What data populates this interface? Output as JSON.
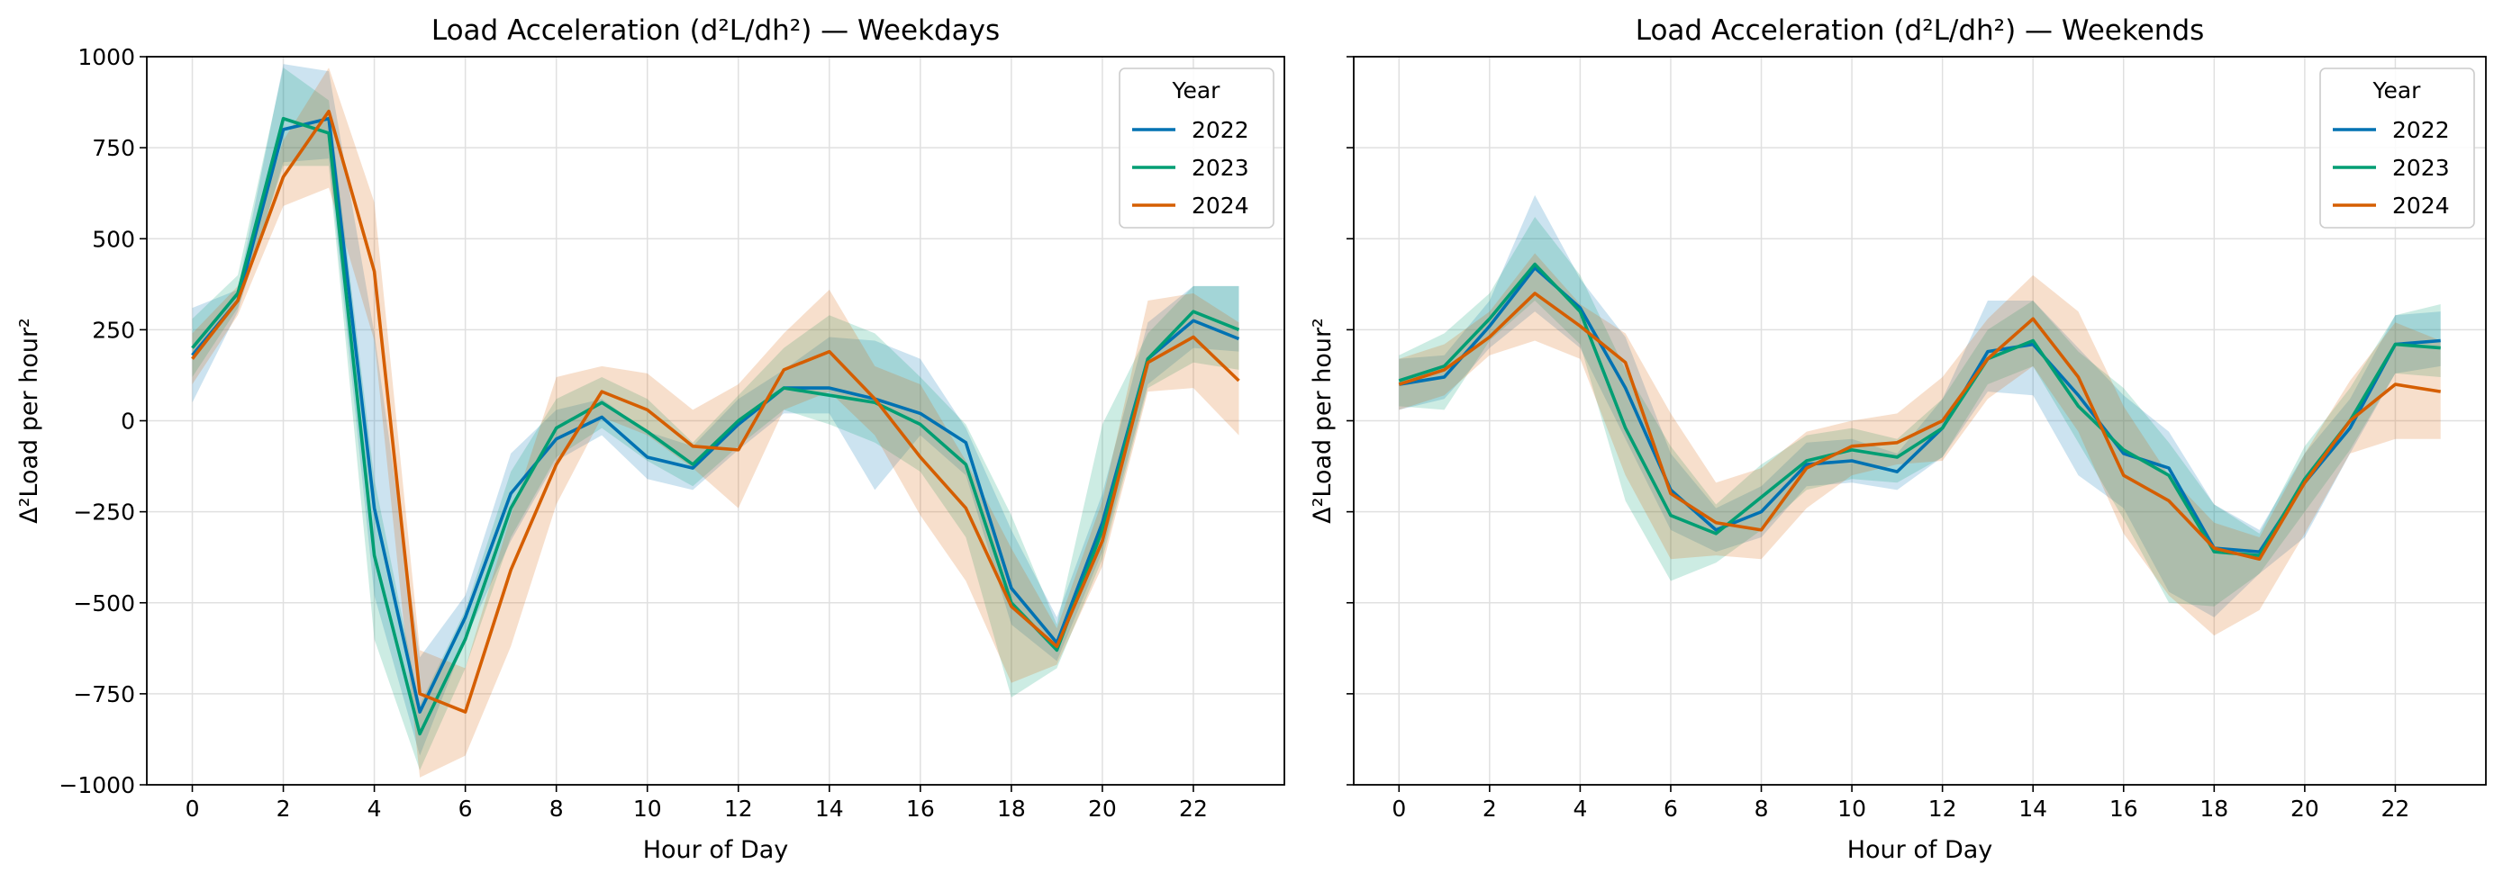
{
  "chart_data": [
    {
      "type": "line",
      "title": "Load Acceleration (d²L/dh²) — Weekdays",
      "xlabel": "Hour of Day",
      "ylabel": "Δ²Load per hour²",
      "xlim": [
        -1,
        24
      ],
      "ylim": [
        -1000,
        1000
      ],
      "x_ticks": [
        0,
        2,
        4,
        6,
        8,
        10,
        12,
        14,
        16,
        18,
        20,
        22
      ],
      "x_tick_labels": [
        "0",
        "2",
        "4",
        "6",
        "8",
        "10",
        "12",
        "14",
        "16",
        "18",
        "20",
        "22"
      ],
      "y_ticks": [
        -1000,
        -750,
        -500,
        -250,
        0,
        250,
        500,
        750,
        1000
      ],
      "y_tick_labels": [
        "−1000",
        "−750",
        "−500",
        "−250",
        "0",
        "250",
        "500",
        "750",
        "1000"
      ],
      "grid": true,
      "legend": {
        "title": "Year",
        "position": "top-right"
      },
      "x": [
        0,
        1,
        2,
        3,
        4,
        5,
        6,
        7,
        8,
        9,
        10,
        11,
        12,
        13,
        14,
        15,
        16,
        17,
        18,
        19,
        20,
        21,
        22,
        23
      ],
      "series": [
        {
          "name": "2022",
          "color": "#0072b2",
          "values": [
            180,
            330,
            800,
            830,
            -240,
            -800,
            -540,
            -200,
            -50,
            10,
            -100,
            -130,
            -10,
            90,
            90,
            60,
            20,
            -60,
            -460,
            -610,
            -280,
            170,
            275,
            225
          ],
          "band_low": [
            50,
            300,
            710,
            720,
            -480,
            -920,
            -600,
            -330,
            -110,
            -40,
            -160,
            -190,
            -80,
            20,
            20,
            -190,
            -40,
            -150,
            -560,
            -660,
            -360,
            100,
            200,
            190
          ],
          "band_high": [
            310,
            360,
            980,
            960,
            240,
            -650,
            -480,
            -90,
            30,
            60,
            -30,
            -70,
            60,
            140,
            230,
            220,
            170,
            -20,
            -300,
            -540,
            -200,
            270,
            370,
            370
          ]
        },
        {
          "name": "2023",
          "color": "#009e73",
          "values": [
            200,
            350,
            830,
            790,
            -370,
            -860,
            -600,
            -240,
            -20,
            50,
            -30,
            -120,
            0,
            90,
            70,
            50,
            -10,
            -120,
            -500,
            -630,
            -300,
            170,
            300,
            250
          ],
          "band_low": [
            120,
            310,
            700,
            700,
            -600,
            -960,
            -680,
            -320,
            -100,
            -20,
            -110,
            -180,
            -70,
            30,
            -10,
            -60,
            -140,
            -320,
            -760,
            -680,
            -380,
            90,
            160,
            140
          ],
          "band_high": [
            280,
            400,
            970,
            880,
            -160,
            -780,
            -520,
            -140,
            60,
            120,
            60,
            -60,
            70,
            200,
            290,
            240,
            120,
            -10,
            -260,
            -560,
            -10,
            240,
            370,
            370
          ]
        },
        {
          "name": "2024",
          "color": "#d55e00",
          "values": [
            170,
            330,
            670,
            850,
            410,
            -750,
            -800,
            -410,
            -120,
            80,
            30,
            -70,
            -80,
            140,
            190,
            60,
            -100,
            -240,
            -510,
            -620,
            -330,
            160,
            230,
            110
          ],
          "band_low": [
            100,
            290,
            590,
            640,
            220,
            -980,
            -920,
            -620,
            -230,
            10,
            -40,
            -130,
            -240,
            30,
            80,
            -40,
            -260,
            -440,
            -720,
            -670,
            -400,
            80,
            90,
            -40
          ],
          "band_high": [
            240,
            370,
            770,
            970,
            600,
            -630,
            -680,
            -260,
            120,
            150,
            130,
            30,
            100,
            240,
            360,
            150,
            100,
            -110,
            -350,
            -570,
            -220,
            330,
            350,
            270
          ]
        }
      ]
    },
    {
      "type": "line",
      "title": "Load Acceleration (d²L/dh²) — Weekends",
      "xlabel": "Hour of Day",
      "ylabel": "Δ²Load per hour²",
      "xlim": [
        -1,
        24
      ],
      "ylim": [
        -1000,
        1000
      ],
      "x_ticks": [
        0,
        2,
        4,
        6,
        8,
        10,
        12,
        14,
        16,
        18,
        20,
        22
      ],
      "x_tick_labels": [
        "0",
        "2",
        "4",
        "6",
        "8",
        "10",
        "12",
        "14",
        "16",
        "18",
        "20",
        "22"
      ],
      "grid": true,
      "legend": {
        "title": "Year",
        "position": "top-right"
      },
      "x": [
        0,
        1,
        2,
        3,
        4,
        5,
        6,
        7,
        8,
        9,
        10,
        11,
        12,
        13,
        14,
        15,
        16,
        17,
        18,
        19,
        20,
        21,
        22,
        23
      ],
      "series": [
        {
          "name": "2022",
          "color": "#0072b2",
          "values": [
            100,
            120,
            260,
            420,
            310,
            90,
            -190,
            -300,
            -250,
            -120,
            -110,
            -140,
            -20,
            190,
            210,
            70,
            -90,
            -130,
            -350,
            -360,
            -170,
            -20,
            210,
            220
          ],
          "band_low": [
            30,
            60,
            200,
            300,
            200,
            -50,
            -300,
            -360,
            -320,
            -180,
            -170,
            -190,
            -100,
            80,
            70,
            -150,
            -240,
            -470,
            -540,
            -420,
            -320,
            -90,
            130,
            150
          ],
          "band_high": [
            170,
            180,
            330,
            620,
            390,
            230,
            -90,
            -240,
            -180,
            -60,
            -50,
            -90,
            60,
            330,
            330,
            200,
            70,
            -30,
            -230,
            -300,
            -90,
            60,
            290,
            300
          ]
        },
        {
          "name": "2023",
          "color": "#009e73",
          "values": [
            110,
            150,
            280,
            430,
            300,
            -20,
            -260,
            -310,
            -210,
            -110,
            -80,
            -100,
            -20,
            170,
            220,
            40,
            -80,
            -150,
            -360,
            -370,
            -160,
            0,
            210,
            200
          ],
          "band_low": [
            40,
            30,
            220,
            330,
            210,
            -220,
            -440,
            -390,
            -300,
            -190,
            -160,
            -170,
            -100,
            100,
            150,
            -60,
            -270,
            -500,
            -510,
            -420,
            -250,
            -80,
            130,
            120
          ],
          "band_high": [
            180,
            240,
            350,
            560,
            400,
            140,
            -70,
            -230,
            -120,
            -40,
            -20,
            -50,
            60,
            250,
            330,
            190,
            90,
            -60,
            -230,
            -310,
            -70,
            90,
            290,
            320
          ]
        },
        {
          "name": "2024",
          "color": "#d55e00",
          "values": [
            100,
            140,
            230,
            350,
            260,
            160,
            -200,
            -280,
            -300,
            -130,
            -70,
            -60,
            0,
            170,
            280,
            120,
            -150,
            -220,
            -350,
            -380,
            -170,
            0,
            100,
            80
          ],
          "band_low": [
            30,
            70,
            180,
            220,
            170,
            -150,
            -380,
            -370,
            -380,
            -240,
            -150,
            -120,
            -110,
            60,
            150,
            -30,
            -310,
            -480,
            -590,
            -520,
            -310,
            -90,
            -50,
            -50
          ],
          "band_high": [
            170,
            210,
            300,
            460,
            320,
            240,
            20,
            -170,
            -130,
            -30,
            0,
            20,
            120,
            280,
            400,
            300,
            40,
            -150,
            -280,
            -320,
            -90,
            110,
            270,
            220
          ]
        }
      ]
    }
  ]
}
